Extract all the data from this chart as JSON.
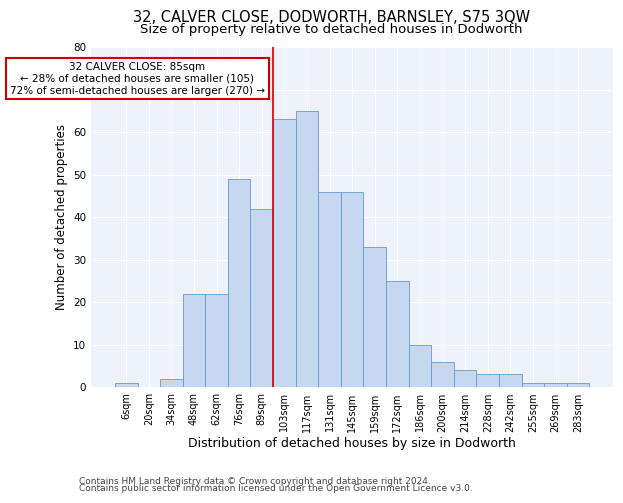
{
  "title": "32, CALVER CLOSE, DODWORTH, BARNSLEY, S75 3QW",
  "subtitle": "Size of property relative to detached houses in Dodworth",
  "xlabel": "Distribution of detached houses by size in Dodworth",
  "ylabel": "Number of detached properties",
  "categories": [
    "6sqm",
    "20sqm",
    "34sqm",
    "48sqm",
    "62sqm",
    "76sqm",
    "89sqm",
    "103sqm",
    "117sqm",
    "131sqm",
    "145sqm",
    "159sqm",
    "172sqm",
    "186sqm",
    "200sqm",
    "214sqm",
    "228sqm",
    "242sqm",
    "255sqm",
    "269sqm",
    "283sqm"
  ],
  "values": [
    1,
    0,
    2,
    22,
    22,
    49,
    42,
    63,
    65,
    46,
    46,
    33,
    25,
    10,
    6,
    4,
    3,
    3,
    1,
    1,
    1
  ],
  "bar_color": "#c5d8f0",
  "bar_edge_color": "#6699cc",
  "vline_index": 6,
  "vline_color": "#cc0000",
  "ylim": [
    0,
    80
  ],
  "yticks": [
    0,
    10,
    20,
    30,
    40,
    50,
    60,
    70,
    80
  ],
  "annotation_line1": "32 CALVER CLOSE: 85sqm",
  "annotation_line2": "← 28% of detached houses are smaller (105)",
  "annotation_line3": "72% of semi-detached houses are larger (270) →",
  "annotation_box_color": "#ffffff",
  "annotation_box_edge_color": "#cc0000",
  "footer_line1": "Contains HM Land Registry data © Crown copyright and database right 2024.",
  "footer_line2": "Contains public sector information licensed under the Open Government Licence v3.0.",
  "fig_bg_color": "#ffffff",
  "plot_bg_color": "#eef2fb",
  "grid_color": "#ffffff",
  "title_fontsize": 10.5,
  "subtitle_fontsize": 9.5,
  "tick_fontsize": 7,
  "ylabel_fontsize": 8.5,
  "xlabel_fontsize": 9,
  "footer_fontsize": 6.5
}
